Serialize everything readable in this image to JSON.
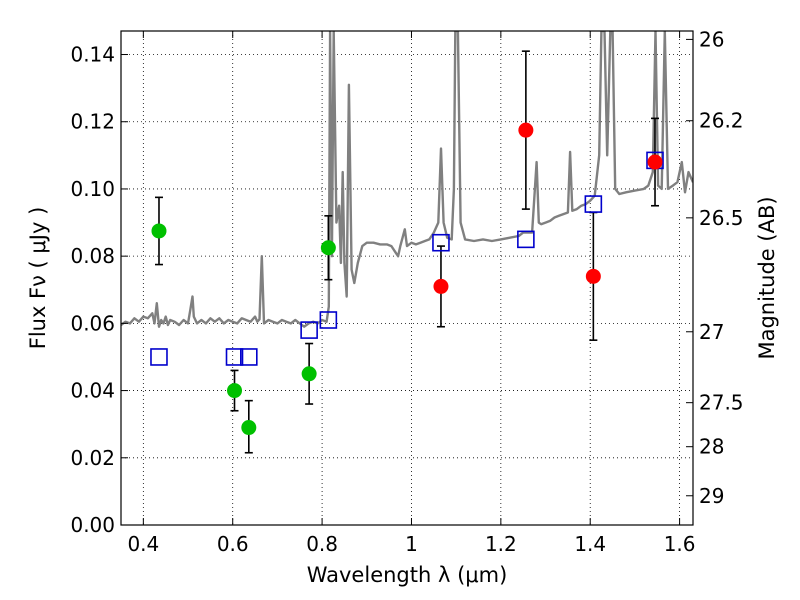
{
  "chart_data": {
    "type": "scatter",
    "xlabel": "Wavelength  λ (μm)",
    "ylabel": "Flux  Fν ( μJy )",
    "y2label": "Magnitude (AB)",
    "xlim": [
      0.35,
      1.63
    ],
    "ylim": [
      0.0,
      0.147
    ],
    "x_ticks": [
      "0.4",
      "0.6",
      "0.8",
      "1",
      "1.2",
      "1.4",
      "1.6"
    ],
    "x_tick_values": [
      0.4,
      0.6,
      0.8,
      1.0,
      1.2,
      1.4,
      1.6
    ],
    "y_ticks": [
      "0.00",
      "0.02",
      "0.04",
      "0.06",
      "0.08",
      "0.10",
      "0.12",
      "0.14"
    ],
    "y_tick_values": [
      0.0,
      0.02,
      0.04,
      0.06,
      0.08,
      0.1,
      0.12,
      0.14
    ],
    "y2_ticks": [
      "26",
      "26.2",
      "26.5",
      "27",
      "27.5",
      "28",
      "29"
    ],
    "y2_tick_fluxes": [
      0.1445,
      0.1203,
      0.0914,
      0.0575,
      0.0364,
      0.0233,
      0.0087
    ],
    "grid": true,
    "grid_style": "dotted",
    "colors": {
      "spectrum": "#808080",
      "green": "#00c000",
      "red": "#ff0000",
      "model": "#0000cc",
      "errorbar": "#000000"
    },
    "series": [
      {
        "marker": "green-circle",
        "points": [
          {
            "x": 0.435,
            "y": 0.0875,
            "lo": 0.0775,
            "hi": 0.0975
          },
          {
            "x": 0.604,
            "y": 0.04,
            "lo": 0.034,
            "hi": 0.046
          },
          {
            "x": 0.636,
            "y": 0.029,
            "lo": 0.0215,
            "hi": 0.037
          },
          {
            "x": 0.771,
            "y": 0.045,
            "lo": 0.036,
            "hi": 0.054
          },
          {
            "x": 0.814,
            "y": 0.0825,
            "lo": 0.073,
            "hi": 0.092
          }
        ]
      },
      {
        "marker": "red-circle",
        "points": [
          {
            "x": 1.066,
            "y": 0.071,
            "lo": 0.059,
            "hi": 0.083
          },
          {
            "x": 1.256,
            "y": 0.1175,
            "lo": 0.094,
            "hi": 0.141
          },
          {
            "x": 1.407,
            "y": 0.074,
            "lo": 0.055,
            "hi": 0.093
          },
          {
            "x": 1.545,
            "y": 0.108,
            "lo": 0.095,
            "hi": 0.121
          }
        ]
      },
      {
        "marker": "blue-open-square",
        "points": [
          {
            "x": 0.435,
            "y": 0.05
          },
          {
            "x": 0.604,
            "y": 0.05
          },
          {
            "x": 0.636,
            "y": 0.05
          },
          {
            "x": 0.771,
            "y": 0.058
          },
          {
            "x": 0.814,
            "y": 0.061
          },
          {
            "x": 1.066,
            "y": 0.084
          },
          {
            "x": 1.256,
            "y": 0.085
          },
          {
            "x": 1.407,
            "y": 0.0955
          },
          {
            "x": 1.545,
            "y": 0.1085
          }
        ]
      },
      {
        "marker": "gray-line",
        "points": [
          [
            0.35,
            0.0595
          ],
          [
            0.36,
            0.0605
          ],
          [
            0.37,
            0.06
          ],
          [
            0.38,
            0.0615
          ],
          [
            0.39,
            0.0605
          ],
          [
            0.4,
            0.062
          ],
          [
            0.41,
            0.0615
          ],
          [
            0.42,
            0.063
          ],
          [
            0.425,
            0.06
          ],
          [
            0.43,
            0.066
          ],
          [
            0.435,
            0.059
          ],
          [
            0.44,
            0.061
          ],
          [
            0.445,
            0.06
          ],
          [
            0.45,
            0.062
          ],
          [
            0.455,
            0.0595
          ],
          [
            0.46,
            0.061
          ],
          [
            0.47,
            0.0605
          ],
          [
            0.48,
            0.0595
          ],
          [
            0.49,
            0.061
          ],
          [
            0.5,
            0.06
          ],
          [
            0.505,
            0.064
          ],
          [
            0.51,
            0.068
          ],
          [
            0.513,
            0.062
          ],
          [
            0.52,
            0.06
          ],
          [
            0.53,
            0.061
          ],
          [
            0.54,
            0.06
          ],
          [
            0.55,
            0.0615
          ],
          [
            0.56,
            0.0605
          ],
          [
            0.57,
            0.0615
          ],
          [
            0.58,
            0.06
          ],
          [
            0.59,
            0.061
          ],
          [
            0.6,
            0.0605
          ],
          [
            0.61,
            0.06
          ],
          [
            0.62,
            0.0615
          ],
          [
            0.63,
            0.061
          ],
          [
            0.64,
            0.0605
          ],
          [
            0.65,
            0.062
          ],
          [
            0.655,
            0.0605
          ],
          [
            0.66,
            0.0612
          ],
          [
            0.665,
            0.08
          ],
          [
            0.67,
            0.06
          ],
          [
            0.68,
            0.061
          ],
          [
            0.69,
            0.0605
          ],
          [
            0.7,
            0.06
          ],
          [
            0.71,
            0.061
          ],
          [
            0.72,
            0.0605
          ],
          [
            0.73,
            0.06
          ],
          [
            0.74,
            0.061
          ],
          [
            0.75,
            0.06
          ],
          [
            0.76,
            0.059
          ],
          [
            0.77,
            0.06
          ],
          [
            0.78,
            0.0605
          ],
          [
            0.79,
            0.06
          ],
          [
            0.8,
            0.061
          ],
          [
            0.81,
            0.0605
          ],
          [
            0.815,
            0.065
          ],
          [
            0.818,
            0.147
          ],
          [
            0.822,
            0.08
          ],
          [
            0.826,
            0.147
          ],
          [
            0.832,
            0.09
          ],
          [
            0.838,
            0.095
          ],
          [
            0.842,
            0.078
          ],
          [
            0.846,
            0.105
          ],
          [
            0.85,
            0.078
          ],
          [
            0.855,
            0.068
          ],
          [
            0.86,
            0.131
          ],
          [
            0.866,
            0.076
          ],
          [
            0.872,
            0.072
          ],
          [
            0.88,
            0.078
          ],
          [
            0.89,
            0.083
          ],
          [
            0.9,
            0.084
          ],
          [
            0.915,
            0.084
          ],
          [
            0.93,
            0.0835
          ],
          [
            0.945,
            0.0835
          ],
          [
            0.955,
            0.083
          ],
          [
            0.965,
            0.081
          ],
          [
            0.97,
            0.08
          ],
          [
            0.975,
            0.083
          ],
          [
            0.985,
            0.088
          ],
          [
            0.99,
            0.083
          ],
          [
            1.0,
            0.084
          ],
          [
            1.01,
            0.0835
          ],
          [
            1.02,
            0.084
          ],
          [
            1.03,
            0.0845
          ],
          [
            1.04,
            0.085
          ],
          [
            1.05,
            0.087
          ],
          [
            1.06,
            0.09
          ],
          [
            1.066,
            0.112
          ],
          [
            1.072,
            0.09
          ],
          [
            1.08,
            0.0855
          ],
          [
            1.09,
            0.085
          ],
          [
            1.095,
            0.1
          ],
          [
            1.098,
            0.147
          ],
          [
            1.104,
            0.147
          ],
          [
            1.11,
            0.09
          ],
          [
            1.12,
            0.085
          ],
          [
            1.14,
            0.0845
          ],
          [
            1.16,
            0.085
          ],
          [
            1.18,
            0.0845
          ],
          [
            1.2,
            0.085
          ],
          [
            1.22,
            0.0855
          ],
          [
            1.24,
            0.086
          ],
          [
            1.25,
            0.087
          ],
          [
            1.256,
            0.087
          ],
          [
            1.262,
            0.087
          ],
          [
            1.27,
            0.087
          ],
          [
            1.28,
            0.108
          ],
          [
            1.285,
            0.09
          ],
          [
            1.29,
            0.0895
          ],
          [
            1.3,
            0.09
          ],
          [
            1.31,
            0.0905
          ],
          [
            1.32,
            0.0915
          ],
          [
            1.33,
            0.092
          ],
          [
            1.34,
            0.0925
          ],
          [
            1.35,
            0.093
          ],
          [
            1.355,
            0.111
          ],
          [
            1.36,
            0.0935
          ],
          [
            1.37,
            0.094
          ],
          [
            1.38,
            0.095
          ],
          [
            1.39,
            0.0955
          ],
          [
            1.4,
            0.0965
          ],
          [
            1.41,
            0.098
          ],
          [
            1.42,
            0.11
          ],
          [
            1.425,
            0.147
          ],
          [
            1.432,
            0.147
          ],
          [
            1.438,
            0.11
          ],
          [
            1.445,
            0.147
          ],
          [
            1.45,
            0.147
          ],
          [
            1.456,
            0.1
          ],
          [
            1.465,
            0.0985
          ],
          [
            1.48,
            0.099
          ],
          [
            1.5,
            0.0995
          ],
          [
            1.52,
            0.1
          ],
          [
            1.53,
            0.101
          ],
          [
            1.54,
            0.105
          ],
          [
            1.546,
            0.147
          ],
          [
            1.552,
            0.101
          ],
          [
            1.56,
            0.1
          ],
          [
            1.567,
            0.147
          ],
          [
            1.574,
            0.1
          ],
          [
            1.585,
            0.101
          ],
          [
            1.595,
            0.102
          ],
          [
            1.605,
            0.108
          ],
          [
            1.612,
            0.099
          ],
          [
            1.62,
            0.105
          ],
          [
            1.63,
            0.102
          ]
        ]
      }
    ]
  }
}
